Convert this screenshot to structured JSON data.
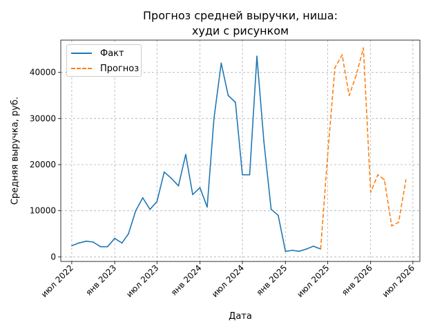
{
  "chart_data": {
    "type": "line",
    "title": [
      "Прогноз средней выручки, ниша:",
      "худи с рисунком"
    ],
    "xlabel": "Дата",
    "ylabel": "Средняя выручка, руб.",
    "ylim": [
      -1000,
      47000
    ],
    "yticks": [
      0,
      10000,
      20000,
      30000,
      40000
    ],
    "ytick_labels": [
      "0",
      "10000",
      "20000",
      "30000",
      "40000"
    ],
    "xlim": [
      "2022-05-15",
      "2026-07-31"
    ],
    "xticks": [
      "2022-07-01",
      "2023-01-01",
      "2023-07-01",
      "2024-01-01",
      "2024-07-01",
      "2025-01-01",
      "2025-07-01",
      "2026-01-01",
      "2026-07-01"
    ],
    "xtick_labels": [
      "июл 2022",
      "янв 2023",
      "июл 2023",
      "янв 2024",
      "июл 2024",
      "янв 2025",
      "июл 2025",
      "янв 2026",
      "июл 2026"
    ],
    "grid": true,
    "legend_position": "top-left",
    "series": [
      {
        "name": "Факт",
        "color": "#1f77b4",
        "dash": "solid",
        "points": [
          [
            "2022-07-01",
            2400
          ],
          [
            "2022-08-01",
            3000
          ],
          [
            "2022-09-01",
            3400
          ],
          [
            "2022-10-01",
            3200
          ],
          [
            "2022-11-01",
            2200
          ],
          [
            "2022-12-01",
            2200
          ],
          [
            "2023-01-01",
            4000
          ],
          [
            "2023-02-01",
            3000
          ],
          [
            "2023-03-01",
            5000
          ],
          [
            "2023-04-01",
            10000
          ],
          [
            "2023-05-01",
            12800
          ],
          [
            "2023-06-01",
            10300
          ],
          [
            "2023-07-01",
            12000
          ],
          [
            "2023-08-01",
            18400
          ],
          [
            "2023-09-01",
            17000
          ],
          [
            "2023-10-01",
            15400
          ],
          [
            "2023-11-01",
            22200
          ],
          [
            "2023-12-01",
            13500
          ],
          [
            "2024-01-01",
            15000
          ],
          [
            "2024-02-01",
            10800
          ],
          [
            "2024-03-01",
            30000
          ],
          [
            "2024-04-01",
            42000
          ],
          [
            "2024-05-01",
            35000
          ],
          [
            "2024-06-01",
            33500
          ],
          [
            "2024-07-01",
            17800
          ],
          [
            "2024-08-01",
            17800
          ],
          [
            "2024-09-01",
            43500
          ],
          [
            "2024-10-01",
            25000
          ],
          [
            "2024-11-01",
            10300
          ],
          [
            "2024-12-01",
            9000
          ],
          [
            "2025-01-01",
            1200
          ],
          [
            "2025-02-01",
            1400
          ],
          [
            "2025-03-01",
            1200
          ],
          [
            "2025-04-01",
            1700
          ],
          [
            "2025-05-01",
            2300
          ],
          [
            "2025-06-01",
            1700
          ]
        ]
      },
      {
        "name": "Прогноз",
        "color": "#ff7f0e",
        "dash": "dashed",
        "points": [
          [
            "2025-06-01",
            1700
          ],
          [
            "2025-07-01",
            22000
          ],
          [
            "2025-08-01",
            41000
          ],
          [
            "2025-09-01",
            43800
          ],
          [
            "2025-10-01",
            35000
          ],
          [
            "2025-11-01",
            39500
          ],
          [
            "2025-12-01",
            45300
          ],
          [
            "2026-01-01",
            14000
          ],
          [
            "2026-02-01",
            17800
          ],
          [
            "2026-03-01",
            16700
          ],
          [
            "2026-04-01",
            6700
          ],
          [
            "2026-05-01",
            7500
          ],
          [
            "2026-06-01",
            16700
          ]
        ]
      }
    ]
  }
}
